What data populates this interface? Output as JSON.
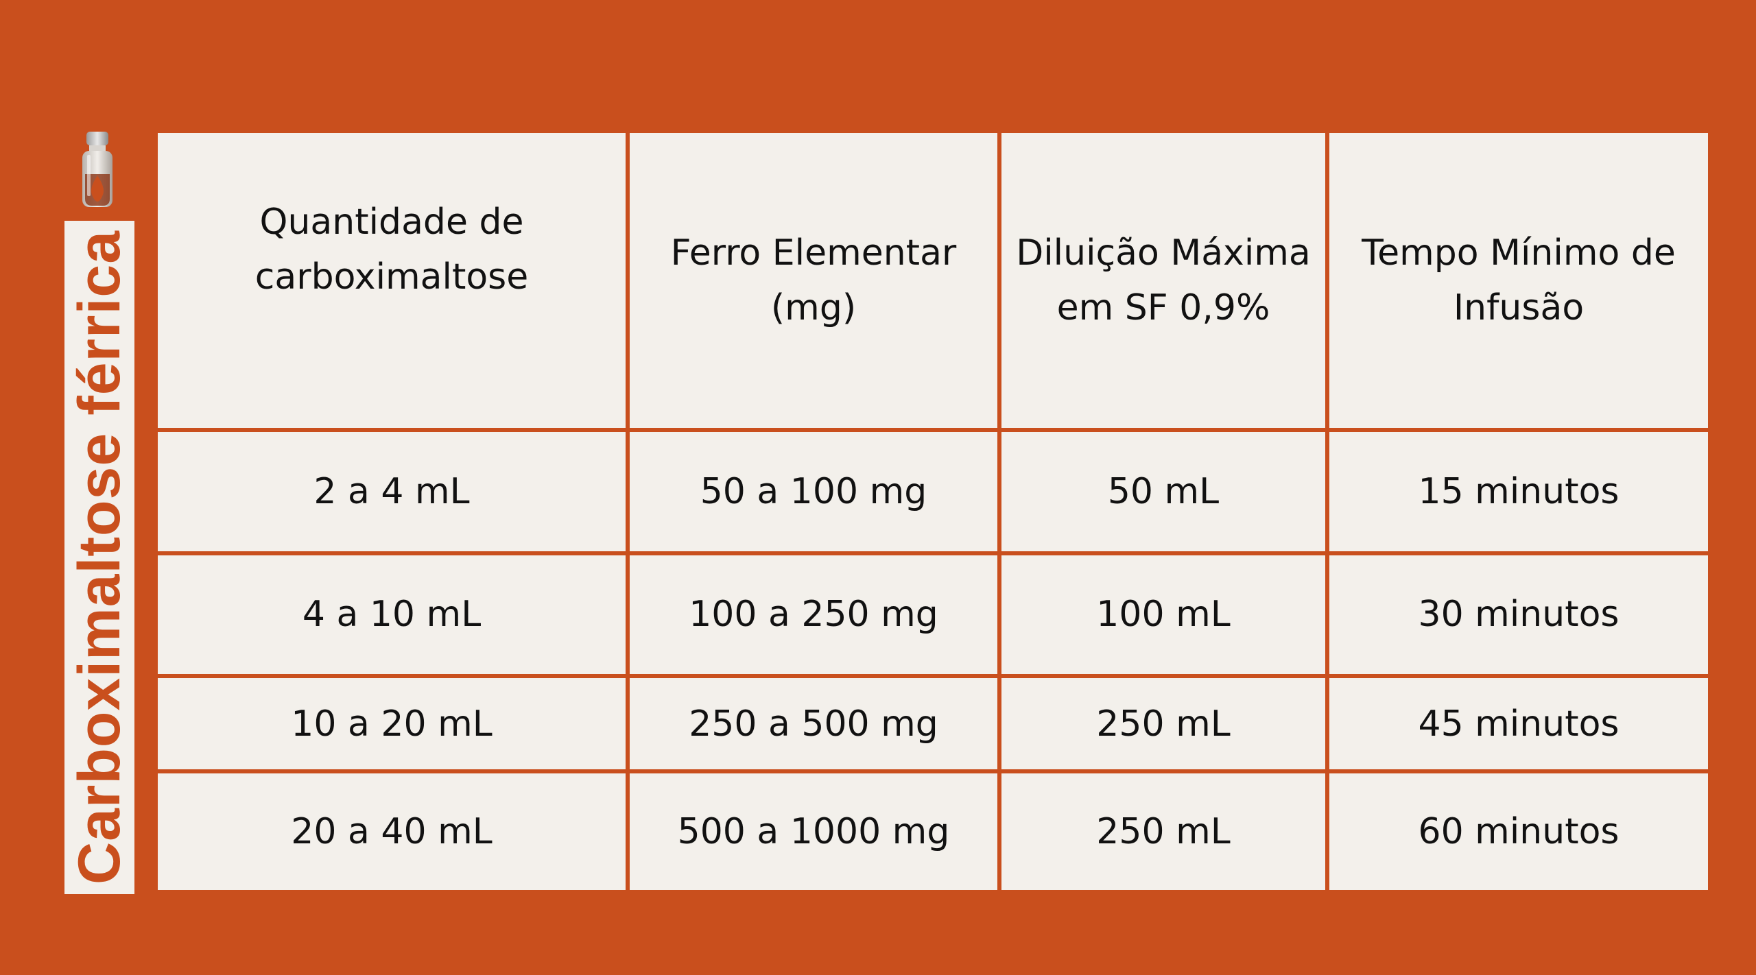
{
  "side_title": "Carboximaltose férrica",
  "icon": "vial-icon",
  "colors": {
    "background": "#c94f1d",
    "cell": "#f3f0eb",
    "text": "#111111"
  },
  "table": {
    "headers": [
      "Quantidade de\ncarboximaltose",
      "Ferro Elementar\n(mg)",
      "Diluição Máxima\nem SF 0,9%",
      "Tempo Mínimo de\nInfusão"
    ],
    "rows": [
      [
        "2 a 4 mL",
        "50 a 100 mg",
        "50 mL",
        "15 minutos"
      ],
      [
        "4 a 10 mL",
        "100 a 250 mg",
        "100 mL",
        "30 minutos"
      ],
      [
        "10 a 20 mL",
        "250 a 500 mg",
        "250 mL",
        "45 minutos"
      ],
      [
        "20 a 40 mL",
        "500 a 1000 mg",
        "250 mL",
        "60 minutos"
      ]
    ]
  }
}
